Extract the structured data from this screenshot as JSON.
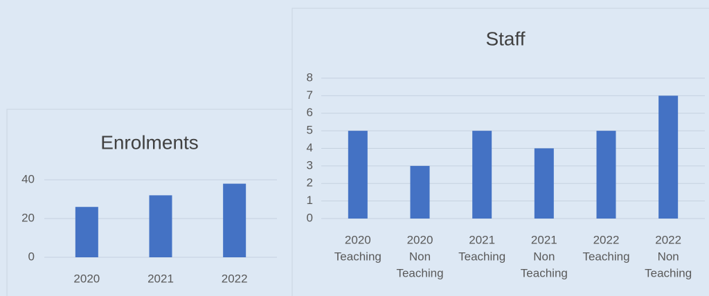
{
  "chart_data": [
    {
      "type": "bar",
      "title": "Enrolments",
      "categories": [
        [
          "2020"
        ],
        [
          "2021"
        ],
        [
          "2022"
        ]
      ],
      "values": [
        26,
        32,
        38
      ],
      "color": "#4472c4",
      "ylim": [
        0,
        50
      ],
      "yticks": [
        0,
        20,
        40
      ],
      "grid": true
    },
    {
      "type": "bar",
      "title": "Staff",
      "categories": [
        [
          "2020",
          "Teaching"
        ],
        [
          "2020",
          "Non",
          "Teaching"
        ],
        [
          "2021",
          "Teaching"
        ],
        [
          "2021",
          "Non",
          "Teaching"
        ],
        [
          "2022",
          "Teaching"
        ],
        [
          "2022",
          "Non",
          "Teaching"
        ]
      ],
      "values": [
        5,
        3,
        5,
        4,
        5,
        7
      ],
      "color": "#4472c4",
      "ylim": [
        0,
        8
      ],
      "yticks": [
        0,
        1,
        2,
        3,
        4,
        5,
        6,
        7,
        8
      ],
      "grid": true
    }
  ]
}
